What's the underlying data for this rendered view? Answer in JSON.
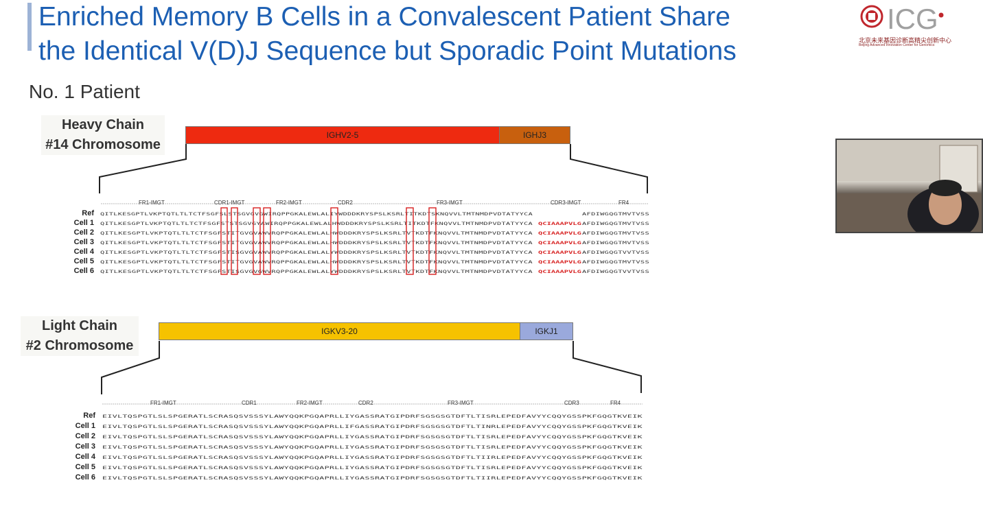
{
  "title": {
    "line1": "Enriched Memory B Cells in a Convalescent Patient Share",
    "line2": "the Identical V(D)J Sequence but Sporadic Point Mutations"
  },
  "logo": {
    "text": "ICG",
    "cn_text": "北京未来基因诊断高精尖创新中心",
    "en_text": "Beijing Advanced Innovation Center for Genomics",
    "color": "#c0272d"
  },
  "patient_label": "No. 1 Patient",
  "heavy": {
    "label_line1": "Heavy Chain",
    "label_line2": "#14 Chromosome",
    "v_gene": "IGHV2-5",
    "j_gene": "IGHJ3",
    "v_color": "#ee2a10",
    "j_color": "#c8600e",
    "regions": [
      "FR1-IMGT",
      "CDR1-IMGT",
      "FR2-IMGT",
      "CDR2",
      "FR3-IMGT",
      "CDR3-IMGT",
      "FR4"
    ],
    "rows": [
      {
        "name": "Ref",
        "seq": "QITLKESGPTLVKPTQTLTLTCTFSGFSLSTSGVGVGWIRQPPGKALEWLALIYWDDDKRYSPSLKSRLTITKDTSKNQVVLTMTNMDPVDTATYYCA",
        "cdr3": "",
        "tail": "AFDIWGQGTMVTVSS"
      },
      {
        "name": "Cell 1",
        "seq": "QITLKESGPTLVKPTQTLTLTCTFSGFSTSTSGVGYAWIRQPPGKALEWLALHWDDDKRYSPSLKSRLTITKDTFKNQVVLTMTNMDPVDTATYYCA",
        "cdr3": "QCIAAAPVLG",
        "tail": "AFDIWGQGTMVTVSS"
      },
      {
        "name": "Cell 2",
        "seq": "QITLKESGPTLVKPTQTLTLTCTFSGFSTITGVGVAWVRQPPGKALEWLALHWDDDKRYSPSLKSRLTVTKDTFKNQVVLTMTNMDPVDTATYYCA",
        "cdr3": "QCIAAAPVLG",
        "tail": "AFDIWGQGTMVTVSS"
      },
      {
        "name": "Cell 3",
        "seq": "QITLKESGPTLVKPTQTLTLTCTFSGFSTITGVGVAWVRQPPGKALEWLALHWDDDKRYSPSLKSRLTVTKDTFKNQVVLTMTNMDPVDTATYYCA",
        "cdr3": "QCIAAAPVLG",
        "tail": "AFDIWGQGTMVTVSS"
      },
      {
        "name": "Cell 4",
        "seq": "QITLKESGPTLVKPTQTLTLTCTFSGFSTISGVGVAWVRQPPGKALEWLALYWDDDKRYSPSLKSRLTVTKDTFKNQVVLTMTNMDPVDTATYYCA",
        "cdr3": "QCIAAAPVLG",
        "tail": "AFDIWGQGTVVTVSS"
      },
      {
        "name": "Cell 5",
        "seq": "QITLKESGPTLVKPTQTLTLTCTFSGFSTITGVGVAWVRQPPGKALEWLALHWDDDKRYSPSLKSRLTVTKDTFKNQVVLTMTNMDPVDTATYYCA",
        "cdr3": "QCIAAAPVLG",
        "tail": "AFDIWGQGTMVTVSS"
      },
      {
        "name": "Cell 6",
        "seq": "QITLKESGPTLVKPTQTLTLTCTFSGFSTISGVGVGWVRQPPGKALEWLALYWDDDKRYSPSLKSRLTVTKDTFKNQVVLTMTNMDPVDTATYYCA",
        "cdr3": "QCIAAAPVLG",
        "tail": "AFDIWGQGTVVTVSS"
      }
    ]
  },
  "light": {
    "label_line1": "Light Chain",
    "label_line2": "#2 Chromosome",
    "v_gene": "IGKV3-20",
    "j_gene": "IGKJ1",
    "v_color": "#f6c200",
    "j_color": "#9aa9dc",
    "regions": [
      "FR1-IMGT",
      "CDR1",
      "FR2-IMGT",
      "CDR2",
      "FR3-IMGT",
      "CDR3",
      "FR4"
    ],
    "rows": [
      {
        "name": "Ref",
        "seq": "EIVLTQSPGTLSLSPGERATLSCRASQSVSSSYLAWYQQKPGQAPRLLIYGASSRATGIPDRFSGSGSGTDFTLTISRLEPEDFAVYYCQQYGSSPKFGQGTKVEIK"
      },
      {
        "name": "Cell 1",
        "seq": "EIVLTQSPGTLSLSPGERATLSCRASQSVSSSYLAWYQQKPGQAPRLLIFGASSRATGIPDRFSGSGSGTDFTLTINRLEPEDFAVYYCQQYGSSPKFGQGTKVEIK"
      },
      {
        "name": "Cell 2",
        "seq": "EIVLTQSPGTLSLSPGERATLSCRASQSVSSSYLAWYQQKPGQAPRLLIYGASSRATGIPDRFSGSGSGTDFTLTISRLEPEDFAVYYCQQYGSSPKFGQGTKVEIK"
      },
      {
        "name": "Cell 3",
        "seq": "EIVLTQSPGTLSLSPGERATLSCRASQSVSSSYLAWYQQKPGQAPRLLIYGASSRATGIPDRFSGSGSGTDFTLTISRLEPEDFAVYYCQQYGSSPKFGQGTKVEIK"
      },
      {
        "name": "Cell 4",
        "seq": "EIVLTQSPGTLSLSPGERATLSCRASQSVSSSYLAWYQQKPGQAPRLLIYGASSRATGIPDRFSGSGSGTDFTLTIIRLEPEDFAVYYCQQYGSSPKFGQGTKVEIK"
      },
      {
        "name": "Cell 5",
        "seq": "EIVLTQSPGTLSLSPGERATLSCRASQSVSSSYLAWYQQKPGQAPRLLIYGASSRATGIPDRFSGSGSGTDFTLTISRLEPEDFAVYYCQQYGSSPKFGQGTKVEIK"
      },
      {
        "name": "Cell 6",
        "seq": "EIVLTQSPGTLSLSPGERATLSCRASQSVSSSYLAWYQQKPGQAPRLLIYGASSRATGIPDRFSGSGSGTDFTLTIIRLEPEDFAVYYCQQYGSSPKFGQGTKVEIK"
      }
    ]
  },
  "mutation_box_color": "#d72020"
}
